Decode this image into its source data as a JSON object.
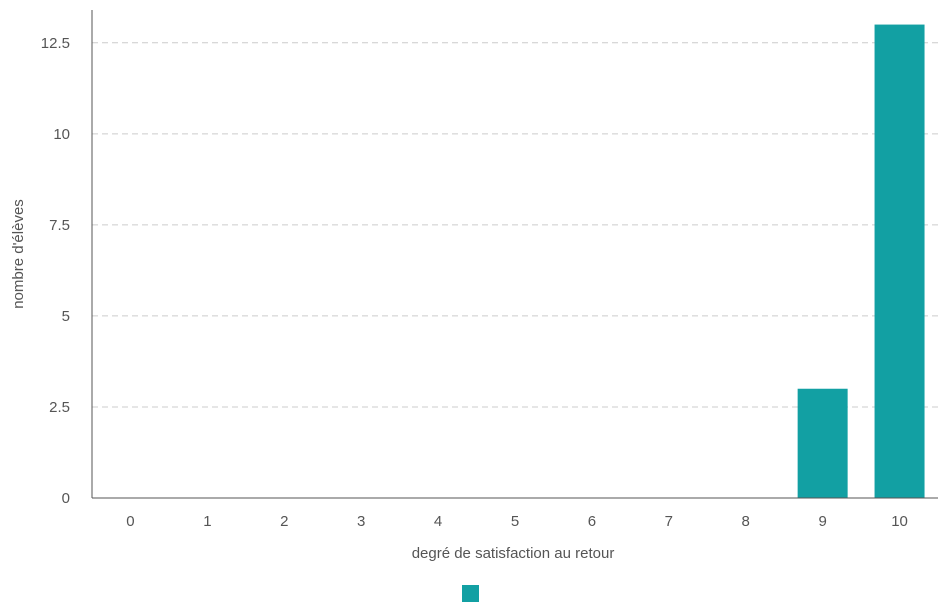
{
  "chart_data": {
    "type": "bar",
    "xlabel": "degré de satisfaction au retour",
    "ylabel": "nombre d'élèves",
    "categories": [
      "0",
      "1",
      "2",
      "3",
      "4",
      "5",
      "6",
      "7",
      "8",
      "9",
      "10"
    ],
    "series": [
      {
        "values": [
          0,
          0,
          0,
          0,
          0,
          0,
          0,
          0,
          0,
          3,
          13
        ],
        "color": "#12a0a3"
      }
    ],
    "yticks": [
      "0",
      "2.5",
      "5",
      "7.5",
      "10",
      "12.5"
    ],
    "ytick_values": [
      0,
      2.5,
      5,
      7.5,
      10,
      12.5
    ],
    "ylim": [
      0,
      13.4
    ],
    "grid": "horizontal dashed",
    "legend": {
      "position": "bottom",
      "entries": [
        ""
      ]
    },
    "colors": {
      "bar": "#12a0a3",
      "grid": "#cccccc",
      "axis": "#555555",
      "text": "#555555"
    }
  }
}
